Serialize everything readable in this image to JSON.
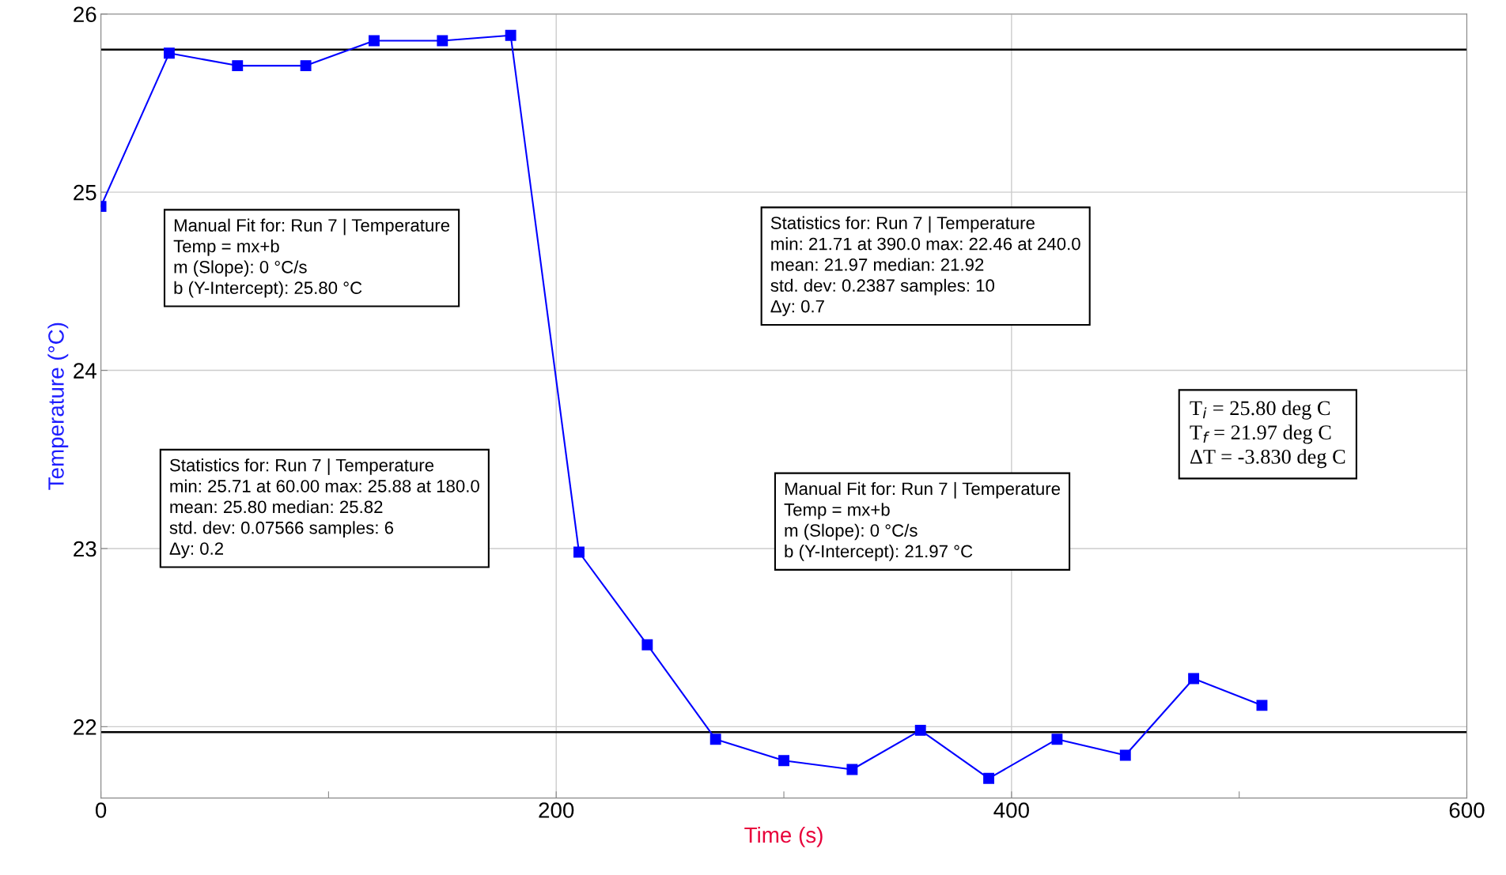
{
  "chart_data": {
    "type": "line",
    "xlabel": "Time (s)",
    "ylabel": "Temperature (°C)",
    "x": [
      0,
      30,
      60,
      90,
      120,
      150,
      180,
      210,
      240,
      270,
      300,
      330,
      360,
      390,
      420,
      450,
      480,
      510
    ],
    "series": [
      {
        "color": "#0000ff",
        "values": [
          24.92,
          25.78,
          25.71,
          25.71,
          25.85,
          25.85,
          25.88,
          22.98,
          22.46,
          21.93,
          21.81,
          21.76,
          21.98,
          21.71,
          21.93,
          21.84,
          22.27,
          22.12
        ]
      }
    ],
    "marker": "square",
    "line_style": "solid",
    "grid": true,
    "xlim": [
      0,
      600
    ],
    "xticks": [
      0,
      {
        "value": 100,
        "label": null
      },
      200,
      {
        "value": 300,
        "label": null
      },
      400,
      {
        "value": 500,
        "label": null
      },
      600
    ],
    "ylim": [
      21.6,
      26
    ],
    "yticks": [
      22,
      23,
      24,
      25,
      26
    ],
    "ref_lines": [
      {
        "axis": "y",
        "value": 25.8,
        "color": "#000000"
      },
      {
        "axis": "y",
        "value": 21.97,
        "color": "#000000"
      }
    ],
    "annotations": [
      "Manual Fit for: Run 7 | Temperature\nTemp = mx+b\nm (Slope): 0 °C/s\nb (Y-Intercept): 25.80 °C",
      "Statistics for: Run 7 | Temperature\nmin: 25.71 at 60.00 max: 25.88 at 180.0\nmean: 25.80 median: 25.82\nstd. dev: 0.07566 samples: 6\nΔy: 0.2",
      "Statistics for: Run 7 | Temperature\nmin: 21.71 at 390.0 max: 22.46 at 240.0\nmean: 21.97 median: 21.92\nstd. dev: 0.2387 samples: 10\nΔy: 0.7",
      "Manual Fit for: Run 7 | Temperature\nTemp = mx+b\nm (Slope): 0 °C/s\nb (Y-Intercept): 21.97 °C",
      "T$_{i}$ = 25.80 deg C\nT$_{f}$ = 21.97 deg C\nΔT = -3.830 deg C"
    ]
  }
}
